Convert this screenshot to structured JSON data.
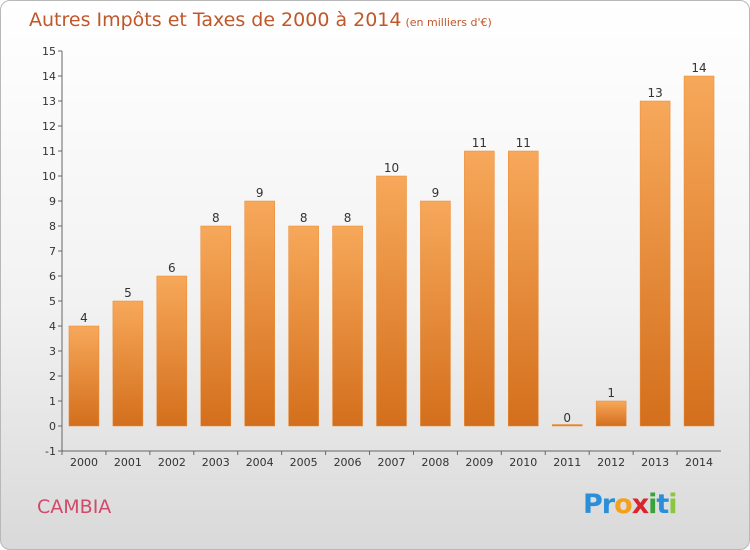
{
  "chart_data": {
    "type": "bar",
    "title": "Autres Impôts et Taxes de 2000 à 2014",
    "unit_note": "(en milliers d'€)",
    "categories": [
      "2000",
      "2001",
      "2002",
      "2003",
      "2004",
      "2005",
      "2006",
      "2007",
      "2008",
      "2009",
      "2010",
      "2011",
      "2012",
      "2013",
      "2014"
    ],
    "values": [
      4,
      5,
      6,
      8,
      9,
      8,
      8,
      10,
      9,
      11,
      11,
      0,
      1,
      13,
      14
    ],
    "ylim": [
      -1,
      15
    ],
    "yticks": [
      -1,
      0,
      1,
      2,
      3,
      4,
      5,
      6,
      7,
      8,
      9,
      10,
      11,
      12,
      13,
      14,
      15
    ],
    "grid": false,
    "bar_color": "#f0913a"
  },
  "footer": {
    "commune": "CAMBIA",
    "logo_letters": [
      {
        "ch": "P",
        "color": "#2a8fd8"
      },
      {
        "ch": "r",
        "color": "#2a8fd8"
      },
      {
        "ch": "o",
        "color": "#f3a01e"
      },
      {
        "ch": "x",
        "color": "#d9262e"
      },
      {
        "ch": "i",
        "color": "#3aa23a"
      },
      {
        "ch": "t",
        "color": "#2a8fd8"
      },
      {
        "ch": "i",
        "color": "#8cc63f"
      }
    ]
  }
}
